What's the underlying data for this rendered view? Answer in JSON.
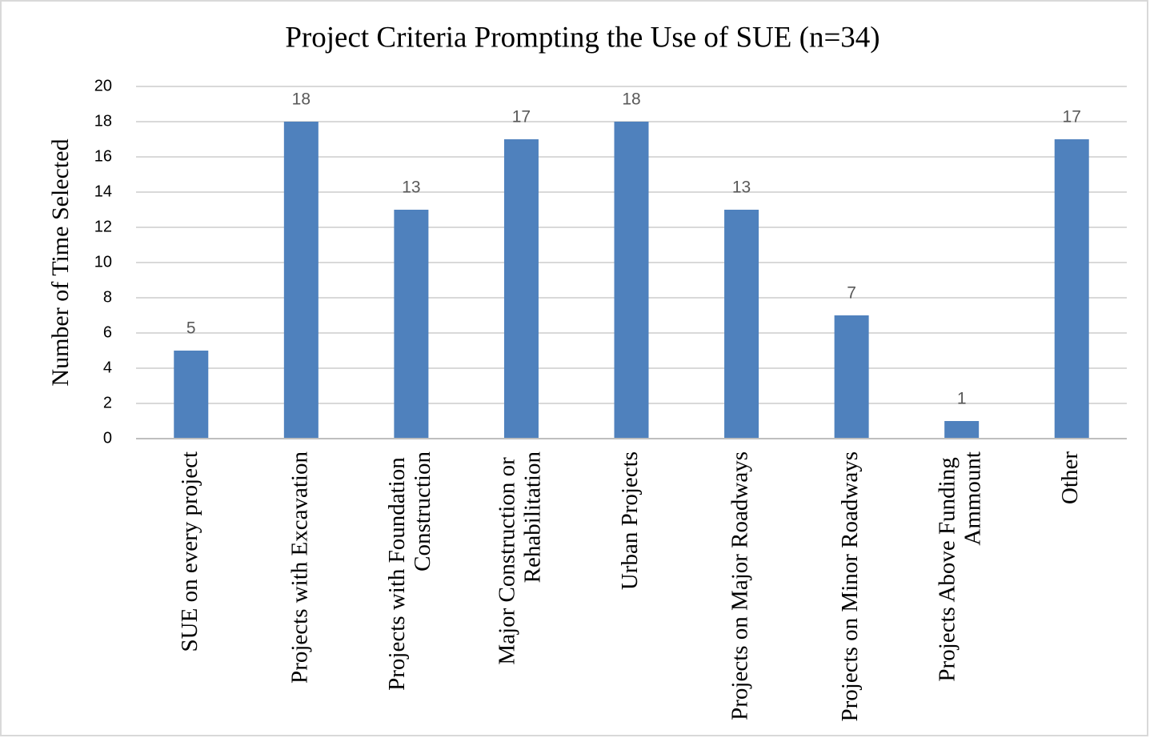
{
  "chart_data": {
    "type": "bar",
    "title": "Project Criteria Prompting  the Use of SUE (n=34)",
    "y_label": "Number of Time Selected",
    "categories": [
      "SUE on every project",
      "Projects with Excavation",
      "Projects with Foundation Construction",
      "Major Construction or Rehabilitation",
      "Urban Projects",
      "Projects on Major Roadways",
      "Projects on Minor Roadways",
      "Projects Above Funding Ammount",
      "Other"
    ],
    "values": [
      5,
      18,
      13,
      17,
      18,
      13,
      7,
      1,
      17
    ],
    "color": "#4f81bd",
    "ylim": [
      0,
      20
    ],
    "yticks": [
      0,
      2,
      4,
      6,
      8,
      10,
      12,
      14,
      16,
      18,
      20
    ],
    "grid": true
  }
}
